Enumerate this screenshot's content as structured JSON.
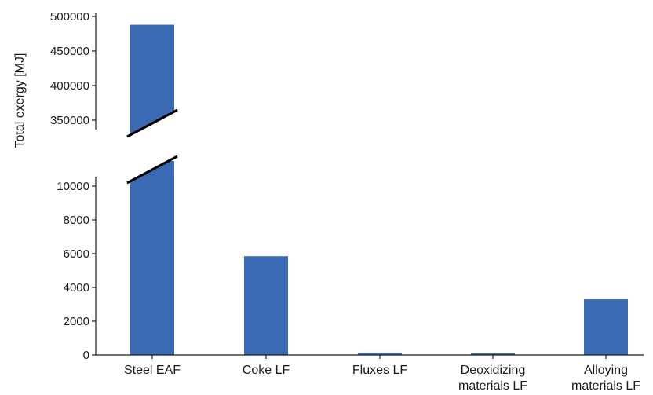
{
  "chart_data": {
    "type": "bar",
    "ylabel": "Total exergy [MJ]",
    "categories": [
      [
        "Steel EAF"
      ],
      [
        "Coke LF"
      ],
      [
        "Fluxes LF"
      ],
      [
        "Deoxidizing",
        "materials LF"
      ],
      [
        "Alloying",
        "materials LF"
      ]
    ],
    "values": [
      488000,
      5850,
      140,
      30,
      3300
    ],
    "bar_color": "#3b6ab5",
    "axis_break": true,
    "lower_segment": {
      "ylim": [
        0,
        10000
      ],
      "ticks": [
        0,
        2000,
        4000,
        6000,
        8000,
        10000
      ]
    },
    "upper_segment": {
      "ylim": [
        350000,
        500000
      ],
      "ticks": [
        350000,
        400000,
        450000,
        500000
      ]
    },
    "grid": false,
    "legend": "none"
  }
}
